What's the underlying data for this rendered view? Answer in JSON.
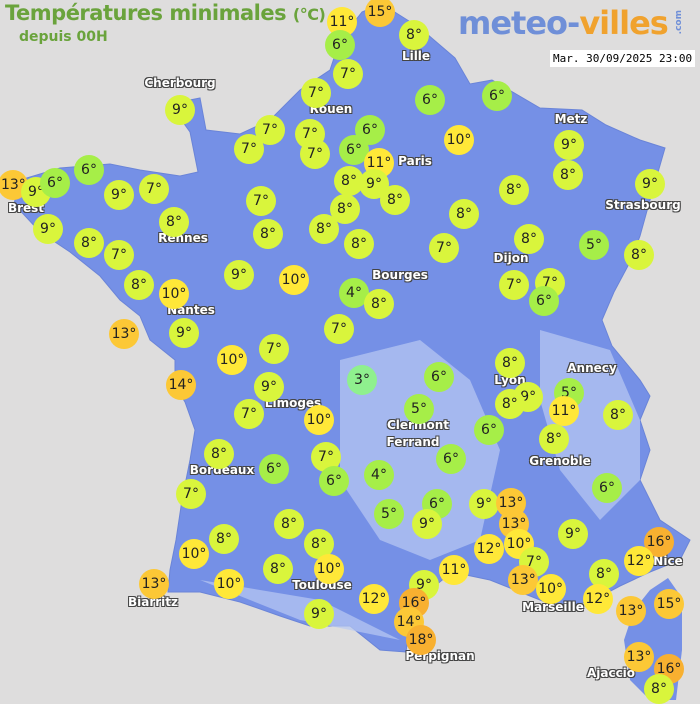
{
  "header": {
    "title": "Températures minimales",
    "unit": "(°C)",
    "subtitle": "depuis 00H"
  },
  "logo": {
    "part1": "meteo-",
    "part2": "villes",
    "suffix": ".com"
  },
  "timestamp": "Mar. 30/09/2025 23:00",
  "colors": {
    "sea": "#dedddd",
    "land": "#7590e6",
    "cold": "#8ff08e",
    "cool": "#a6ee48",
    "mild": "#d9f53c",
    "warm": "#ffe838",
    "hot": "#fcc836",
    "veryhot": "#f8b030"
  },
  "cities": [
    {
      "name": "Cherbourg"
    },
    {
      "name": "Lille"
    },
    {
      "name": "Rouen"
    },
    {
      "name": "Paris"
    },
    {
      "name": "Metz"
    },
    {
      "name": "Brest"
    },
    {
      "name": "Strasbourg"
    },
    {
      "name": "Rennes"
    },
    {
      "name": "Dijon"
    },
    {
      "name": "Bourges"
    },
    {
      "name": "Nantes"
    },
    {
      "name": "Limoges"
    },
    {
      "name": "Lyon"
    },
    {
      "name": "Annecy"
    },
    {
      "name": "Clermont"
    },
    {
      "name": "Ferrand"
    },
    {
      "name": "Grenoble"
    },
    {
      "name": "Bordeaux"
    },
    {
      "name": "Nice"
    },
    {
      "name": "Toulouse"
    },
    {
      "name": "Biarritz"
    },
    {
      "name": "Marseille"
    },
    {
      "name": "Perpignan"
    },
    {
      "name": "Ajaccio"
    }
  ],
  "temperatures": [
    11,
    15,
    6,
    8,
    7,
    9,
    7,
    7,
    7,
    7,
    6,
    6,
    7,
    6,
    6,
    10,
    11,
    9,
    8,
    8,
    9,
    8,
    9,
    8,
    8,
    8,
    7,
    8,
    8,
    8,
    7,
    8,
    5,
    8,
    13,
    9,
    6,
    6,
    9,
    7,
    9,
    8,
    8,
    7,
    8,
    10,
    9,
    10,
    13,
    9,
    7,
    7,
    6,
    4,
    8,
    7,
    10,
    7,
    14,
    9,
    7,
    10,
    3,
    6,
    8,
    9,
    8,
    5,
    11,
    8,
    5,
    6,
    8,
    8,
    6,
    7,
    6,
    4,
    6,
    7,
    5,
    6,
    9,
    9,
    13,
    13,
    6,
    9,
    8,
    8,
    8,
    10,
    12,
    10,
    11,
    7,
    13,
    10,
    16,
    12,
    8,
    10,
    8,
    10,
    13,
    12,
    9,
    12,
    13,
    15,
    9,
    16,
    14,
    18,
    13,
    16,
    8
  ],
  "unit_symbol": "°"
}
